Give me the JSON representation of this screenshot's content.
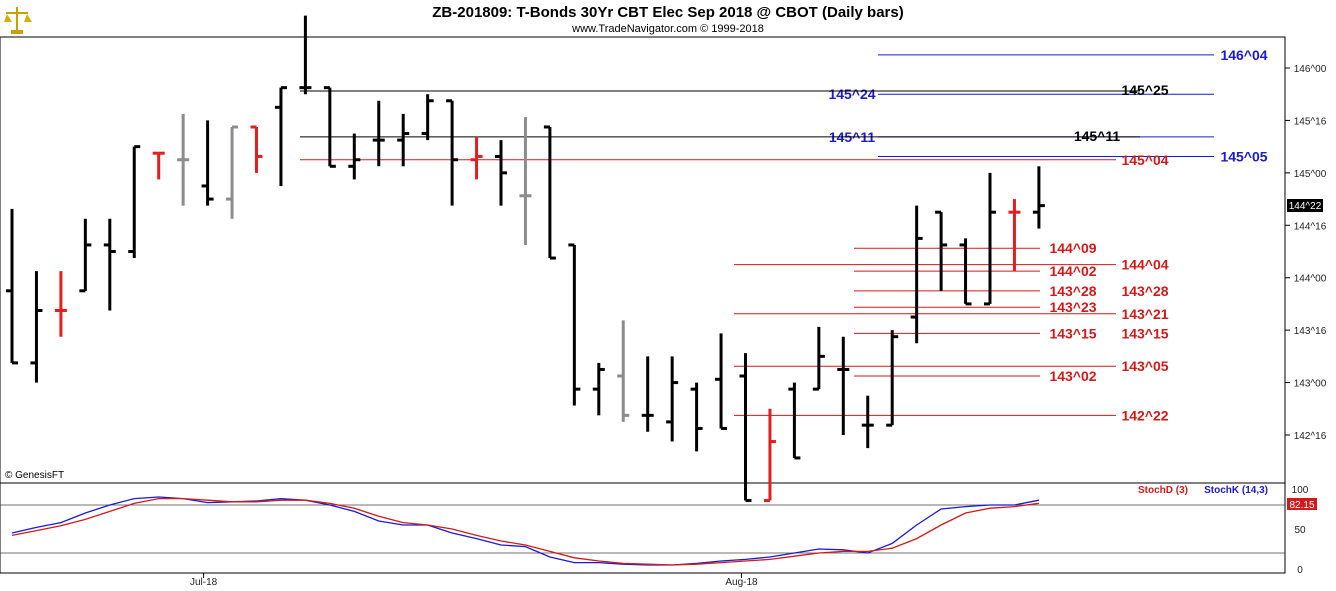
{
  "header": {
    "title": "ZB-201809:  T-Bonds 30Yr CBT Elec Sep 2018 @ CBOT  (Daily bars)",
    "subtitle": "www.TradeNavigator.com © 1999-2018"
  },
  "watermark": "© GenesisFT",
  "colors": {
    "up": "#000000",
    "down": "#e41e1e",
    "inside": "#8c8c8c",
    "blue": "#1a1ad0",
    "red": "#d11a1a"
  },
  "chart_data": [
    {
      "type": "ohlc",
      "title": "ZB-201809:  T-Bonds 30Yr CBT Elec Sep 2018 @ CBOT  (Daily bars)",
      "y_unit": "32nds",
      "ylim": [
        "141^28",
        "146^16"
      ],
      "y_ticks": [
        "146^00",
        "145^16",
        "145^00",
        "144^16",
        "144^00",
        "143^16",
        "143^00",
        "142^16"
      ],
      "x_labels": [
        {
          "label": "Jul-18",
          "bar": 8
        },
        {
          "label": "Aug-18",
          "bar": 30
        }
      ],
      "last_price": "144^22",
      "bars": [
        {
          "o": "143^28",
          "h": "144^21",
          "l": "143^06",
          "c": "143^06",
          "k": "up"
        },
        {
          "o": "143^06",
          "h": "144^02",
          "l": "143^00",
          "c": "143^22",
          "k": "up"
        },
        {
          "o": "143^22",
          "h": "144^02",
          "l": "143^14",
          "c": "143^22",
          "k": "down"
        },
        {
          "o": "143^28",
          "h": "144^18",
          "l": "143^28",
          "c": "144^10",
          "k": "up"
        },
        {
          "o": "144^10",
          "h": "144^18",
          "l": "143^22",
          "c": "144^08",
          "k": "up"
        },
        {
          "o": "144^08",
          "h": "145^08",
          "l": "144^06",
          "c": "145^08",
          "k": "up"
        },
        {
          "o": "145^06",
          "h": "145^06",
          "l": "144^30",
          "c": "145^06",
          "k": "down"
        },
        {
          "o": "145^04",
          "h": "145^18",
          "l": "144^22",
          "c": "145^04",
          "k": "inside"
        },
        {
          "o": "144^28",
          "h": "145^16",
          "l": "144^22",
          "c": "144^24",
          "k": "up"
        },
        {
          "o": "144^24",
          "h": "145^14",
          "l": "144^18",
          "c": "145^14",
          "k": "inside"
        },
        {
          "o": "145^14",
          "h": "145^14",
          "l": "145^00",
          "c": "145^05",
          "k": "down"
        },
        {
          "o": "145^20",
          "h": "145^26",
          "l": "144^28",
          "c": "145^26",
          "k": "up"
        },
        {
          "o": "145^26",
          "h": "146^16",
          "l": "145^24",
          "c": "145^26",
          "k": "up"
        },
        {
          "o": "145^26",
          "h": "145^26",
          "l": "145^02",
          "c": "145^02",
          "k": "up"
        },
        {
          "o": "145^02",
          "h": "145^12",
          "l": "144^30",
          "c": "145^04",
          "k": "up"
        },
        {
          "o": "145^10",
          "h": "145^22",
          "l": "145^02",
          "c": "145^10",
          "k": "up"
        },
        {
          "o": "145^10",
          "h": "145^18",
          "l": "145^02",
          "c": "145^12",
          "k": "up"
        },
        {
          "o": "145^12",
          "h": "145^24",
          "l": "145^10",
          "c": "145^22",
          "k": "up"
        },
        {
          "o": "145^22",
          "h": "145^22",
          "l": "144^22",
          "c": "145^04",
          "k": "up"
        },
        {
          "o": "145^04",
          "h": "145^11",
          "l": "144^30",
          "c": "145^05",
          "k": "down"
        },
        {
          "o": "145^05",
          "h": "145^10",
          "l": "144^22",
          "c": "145^00",
          "k": "up"
        },
        {
          "o": "144^25",
          "h": "145^17",
          "l": "144^10",
          "c": "144^25",
          "k": "inside"
        },
        {
          "o": "145^14",
          "h": "145^14",
          "l": "144^06",
          "c": "144^06",
          "k": "up"
        },
        {
          "o": "144^10",
          "h": "144^10",
          "l": "142^25",
          "c": "142^30",
          "k": "up"
        },
        {
          "o": "142^30",
          "h": "143^06",
          "l": "142^22",
          "c": "143^04",
          "k": "up"
        },
        {
          "o": "143^02",
          "h": "143^19",
          "l": "142^20",
          "c": "142^22",
          "k": "inside"
        },
        {
          "o": "142^22",
          "h": "143^08",
          "l": "142^17",
          "c": "142^22",
          "k": "up"
        },
        {
          "o": "142^20",
          "h": "143^08",
          "l": "142^14",
          "c": "143^00",
          "k": "up"
        },
        {
          "o": "142^30",
          "h": "143^00",
          "l": "142^11",
          "c": "142^18",
          "k": "up"
        },
        {
          "o": "143^01",
          "h": "143^15",
          "l": "142^18",
          "c": "142^18",
          "k": "up"
        },
        {
          "o": "143^02",
          "h": "143^09",
          "l": "141^28",
          "c": "141^28",
          "k": "up"
        },
        {
          "o": "141^28",
          "h": "142^24",
          "l": "141^28",
          "c": "142^14",
          "k": "down"
        },
        {
          "o": "142^30",
          "h": "143^00",
          "l": "142^09",
          "c": "142^09",
          "k": "up"
        },
        {
          "o": "142^30",
          "h": "143^17",
          "l": "142^30",
          "c": "143^08",
          "k": "up"
        },
        {
          "o": "143^04",
          "h": "143^14",
          "l": "142^16",
          "c": "143^04",
          "k": "up"
        },
        {
          "o": "142^19",
          "h": "142^28",
          "l": "142^12",
          "c": "142^19",
          "k": "up"
        },
        {
          "o": "142^19",
          "h": "143^16",
          "l": "142^19",
          "c": "143^14",
          "k": "up"
        },
        {
          "o": "143^20",
          "h": "144^22",
          "l": "143^12",
          "c": "144^12",
          "k": "up"
        },
        {
          "o": "144^20",
          "h": "144^20",
          "l": "143^28",
          "c": "144^10",
          "k": "up"
        },
        {
          "o": "144^10",
          "h": "144^12",
          "l": "143^24",
          "c": "143^24",
          "k": "up"
        },
        {
          "o": "143^24",
          "h": "145^00",
          "l": "143^24",
          "c": "144^20",
          "k": "up"
        },
        {
          "o": "144^20",
          "h": "144^24",
          "l": "144^02",
          "c": "144^20",
          "k": "down"
        },
        {
          "o": "144^20",
          "h": "145^02",
          "l": "144^15",
          "c": "144^22",
          "k": "up"
        }
      ],
      "levels_blue": [
        {
          "label": "146^04",
          "value": "146^04",
          "label_pos": "right"
        },
        {
          "label": "145^24",
          "value": "145^24",
          "label_pos": "middle"
        },
        {
          "label": "145^11",
          "value": "145^11",
          "label_pos": "middle"
        },
        {
          "label": "145^05",
          "value": "145^05",
          "label_pos": "right"
        }
      ],
      "levels_black": [
        {
          "label": "145^25",
          "value": "145^25"
        },
        {
          "label": "145^11",
          "value": "145^11"
        }
      ],
      "levels_red": [
        {
          "label": "145^04",
          "value": "145^04",
          "label_pos": "right"
        },
        {
          "label": "144^09",
          "value": "144^09",
          "label_pos": "left"
        },
        {
          "label": "144^04",
          "value": "144^04",
          "label_pos": "right"
        },
        {
          "label": "144^02",
          "value": "144^02",
          "label_pos": "left"
        },
        {
          "label": "143^28",
          "value": "143^28",
          "label_pos": "left"
        },
        {
          "label": "143^28",
          "value": "143^28",
          "label_pos": "right"
        },
        {
          "label": "143^23",
          "value": "143^23",
          "label_pos": "left"
        },
        {
          "label": "143^21",
          "value": "143^21",
          "label_pos": "right"
        },
        {
          "label": "143^15",
          "value": "143^15",
          "label_pos": "left"
        },
        {
          "label": "143^15",
          "value": "143^15",
          "label_pos": "right"
        },
        {
          "label": "143^05",
          "value": "143^05",
          "label_pos": "right"
        },
        {
          "label": "143^02",
          "value": "143^02",
          "label_pos": "left"
        },
        {
          "label": "142^22",
          "value": "142^22",
          "label_pos": "right"
        }
      ]
    },
    {
      "type": "line",
      "title": "",
      "ylim": [
        0,
        100
      ],
      "y_ticks": [
        "100",
        "50",
        "0"
      ],
      "reference_lines": [
        80,
        20
      ],
      "legend": [
        "StochD (3)",
        "StochK (14,3)"
      ],
      "last_value": "82.15",
      "series": [
        {
          "name": "StochK (14,3)",
          "color": "#1a1ad0",
          "values": [
            45,
            52,
            58,
            70,
            80,
            88,
            90,
            88,
            83,
            84,
            85,
            88,
            86,
            80,
            72,
            60,
            55,
            55,
            45,
            38,
            30,
            28,
            15,
            8,
            8,
            6,
            5,
            5,
            7,
            10,
            12,
            15,
            20,
            25,
            24,
            20,
            32,
            55,
            75,
            78,
            80,
            80,
            86
          ]
        },
        {
          "name": "StochD (3)",
          "color": "#d11a1a",
          "values": [
            42,
            48,
            54,
            62,
            72,
            82,
            88,
            88,
            86,
            84,
            84,
            86,
            86,
            82,
            76,
            66,
            58,
            55,
            50,
            42,
            35,
            30,
            22,
            14,
            10,
            7,
            6,
            5,
            6,
            8,
            10,
            12,
            16,
            20,
            22,
            22,
            26,
            38,
            55,
            70,
            76,
            78,
            82.15
          ]
        }
      ]
    }
  ]
}
